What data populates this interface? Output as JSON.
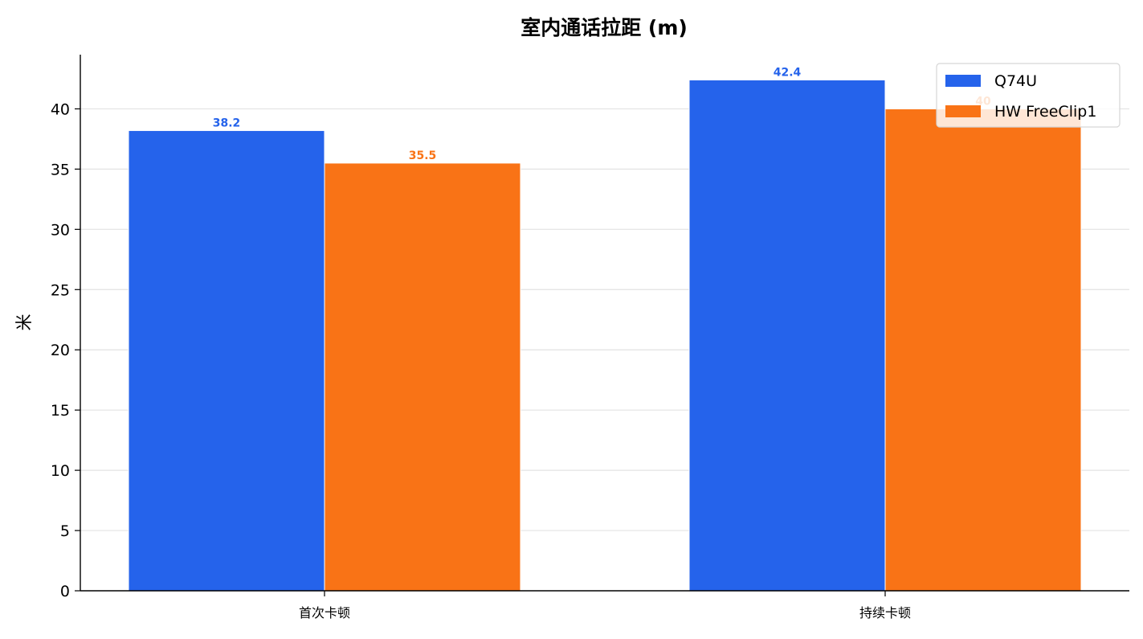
{
  "chart_data": {
    "type": "bar",
    "title": "室内通话拉距 (m)",
    "xlabel": "",
    "ylabel": "米",
    "categories": [
      "首次卡顿",
      "持续卡顿"
    ],
    "series": [
      {
        "name": "Q74U",
        "values": [
          38.2,
          42.4
        ],
        "color": "#2563eb",
        "labels": [
          "38.2",
          "42.4"
        ]
      },
      {
        "name": "HW FreeClip1",
        "values": [
          35.5,
          40
        ],
        "color": "#f97316",
        "labels": [
          "35.5",
          "40"
        ]
      }
    ],
    "ylim": [
      0,
      44.5
    ],
    "yticks": [
      0,
      5,
      10,
      15,
      20,
      25,
      30,
      35,
      40
    ],
    "grid": "horizontal",
    "legend": "top-right"
  }
}
